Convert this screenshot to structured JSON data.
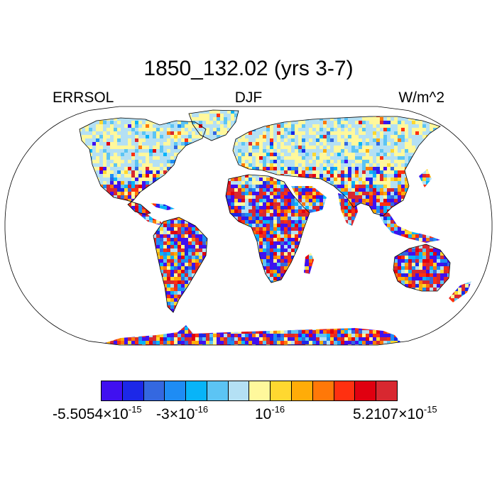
{
  "title": "1850_132.02 (yrs 3-7)",
  "subtitles": {
    "left": "ERRSOL",
    "center": "DJF",
    "right": "W/m^2"
  },
  "colorbar": {
    "colors": [
      "#4010f0",
      "#1c28e8",
      "#3468e0",
      "#1e8cf4",
      "#08b4f8",
      "#5cc4f4",
      "#b4e0f4",
      "#fff89c",
      "#ffd830",
      "#ffac08",
      "#ff7808",
      "#ff3010",
      "#e00010",
      "#d82830"
    ],
    "labels": [
      {
        "mantissa": "-5.5054",
        "times": "×",
        "base": "10",
        "exp": "-15"
      },
      {
        "mantissa": "-3",
        "times": "×",
        "base": "10",
        "exp": "-16"
      },
      {
        "mantissa": "",
        "times": "",
        "base": "10",
        "exp": "-16"
      },
      {
        "mantissa": "5.2107",
        "times": "×",
        "base": "10",
        "exp": "-15"
      }
    ]
  },
  "map": {
    "projection": "Robinson",
    "field": "ERRSOL",
    "season": "DJF",
    "units": "W/m^2",
    "land_only": true
  }
}
